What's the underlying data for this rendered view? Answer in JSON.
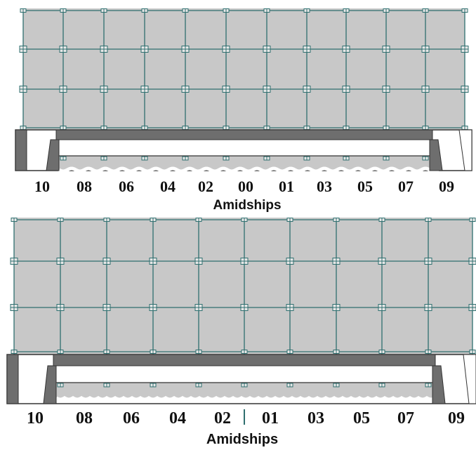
{
  "colors": {
    "deck": "#c8c8c8",
    "gridline": "#2f6f6f",
    "joint": "#2f6f6f",
    "girder": "#6e6e6e",
    "outline": "#333333",
    "label": "#111111"
  },
  "panels": [
    {
      "id": "upper",
      "frame_labels": [
        "10",
        "08",
        "06",
        "04",
        "02",
        "00",
        "01",
        "03",
        "05",
        "07",
        "09"
      ],
      "amidships_label": "Amidships",
      "center_marker": "00"
    },
    {
      "id": "lower",
      "frame_labels": [
        "10",
        "08",
        "06",
        "04",
        "02",
        "01",
        "03",
        "05",
        "07",
        "09"
      ],
      "amidships_label": "Amidships",
      "center_marker": "line"
    }
  ]
}
